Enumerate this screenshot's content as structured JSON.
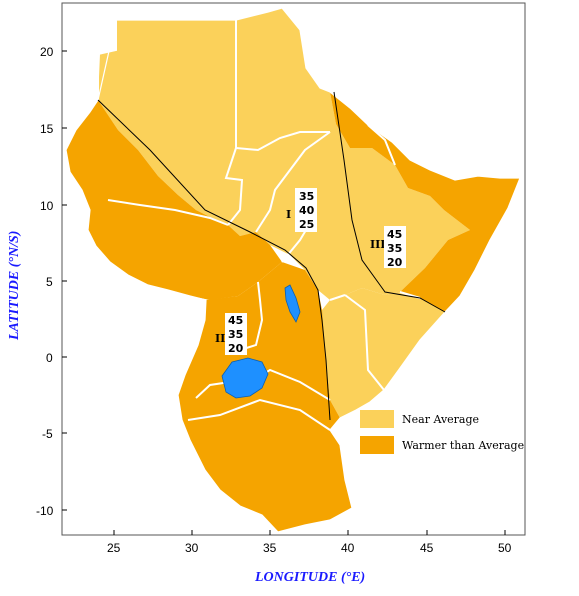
{
  "axes": {
    "x_title": "LONGITUDE (°E)",
    "y_title": "LATITUDE (°N/S)",
    "x_ticks": [
      "25",
      "30",
      "35",
      "40",
      "45",
      "50"
    ],
    "y_ticks": [
      "20",
      "15",
      "10",
      "5",
      "0",
      "-5",
      "-10"
    ]
  },
  "zones": [
    {
      "id": "I",
      "label": "I",
      "probabilities": [
        "35",
        "40",
        "25"
      ]
    },
    {
      "id": "II",
      "label": "II",
      "probabilities": [
        "45",
        "35",
        "20"
      ]
    },
    {
      "id": "III",
      "label": "III",
      "probabilities": [
        "45",
        "35",
        "20"
      ]
    }
  ],
  "legend": {
    "items": [
      {
        "label": "Near Average",
        "color": "#fbd15a"
      },
      {
        "label": "Warmer than Average",
        "color": "#f5a400"
      }
    ]
  },
  "colors": {
    "near_average": "#fbd15a",
    "warmer": "#f5a400",
    "lake": "#1e90ff",
    "border": "#ffffff",
    "zone_line": "#000000"
  }
}
